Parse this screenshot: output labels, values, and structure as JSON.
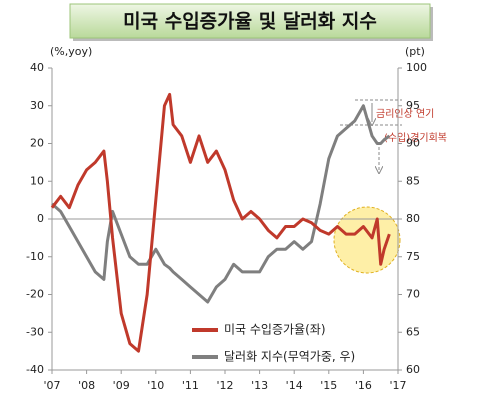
{
  "chart_data": {
    "type": "line",
    "title": "미국 수입증가율 및 달러화 지수",
    "y_axis_label": "(%,yoy)",
    "y2_axis_label": "(pt)",
    "xlim": [
      2007,
      2017
    ],
    "xticks": [
      {
        "value": 2007,
        "label": "'07"
      },
      {
        "value": 2008,
        "label": "'08"
      },
      {
        "value": 2009,
        "label": "'09"
      },
      {
        "value": 2010,
        "label": "'10"
      },
      {
        "value": 2011,
        "label": "'11"
      },
      {
        "value": 2012,
        "label": "'12"
      },
      {
        "value": 2013,
        "label": "'13"
      },
      {
        "value": 2014,
        "label": "'14"
      },
      {
        "value": 2015,
        "label": "'15"
      },
      {
        "value": 2016,
        "label": "'16"
      },
      {
        "value": 2017,
        "label": "'17"
      }
    ],
    "ylim": [
      -40,
      40
    ],
    "yticks": [
      -40,
      -30,
      -20,
      -10,
      0,
      10,
      20,
      30,
      40
    ],
    "y2lim": [
      60,
      100
    ],
    "y2ticks": [
      60,
      65,
      70,
      75,
      80,
      85,
      90,
      95,
      100
    ],
    "grid": false,
    "x": [
      2007.0,
      2007.25,
      2007.5,
      2007.75,
      2008.0,
      2008.25,
      2008.5,
      2008.6,
      2008.75,
      2009.0,
      2009.25,
      2009.5,
      2009.75,
      2010.0,
      2010.25,
      2010.4,
      2010.5,
      2010.75,
      2011.0,
      2011.25,
      2011.5,
      2011.75,
      2012.0,
      2012.25,
      2012.5,
      2012.75,
      2013.0,
      2013.25,
      2013.5,
      2013.75,
      2014.0,
      2014.25,
      2014.5,
      2014.75,
      2015.0,
      2015.25,
      2015.5,
      2015.75,
      2016.0,
      2016.25,
      2016.4,
      2016.5,
      2016.6,
      2016.75
    ],
    "series": [
      {
        "name": "미국 수입증가율(좌)",
        "color": "#c0392b",
        "values": [
          3,
          6,
          3,
          9,
          13,
          15,
          18,
          10,
          -5,
          -25,
          -33,
          -35,
          -20,
          5,
          30,
          33,
          25,
          22,
          15,
          22,
          15,
          18,
          13,
          5,
          0,
          2,
          0,
          -3,
          -5,
          -2,
          -2,
          0,
          -1,
          -3,
          -4,
          -2,
          -4,
          -4,
          -2,
          -5,
          0,
          -12,
          -8,
          -4
        ]
      },
      {
        "name": "달러화 지수(무역가중, 우)",
        "color": "#7f7f7f",
        "axis": "y2",
        "values": [
          82,
          81,
          79,
          77,
          75,
          73,
          72,
          77,
          81,
          78,
          75,
          74,
          74,
          76,
          74,
          73.5,
          73,
          72,
          71,
          70,
          69,
          71,
          72,
          74,
          73,
          73,
          73,
          75,
          76,
          76,
          77,
          76,
          77,
          82,
          88,
          91,
          92,
          93,
          95,
          91,
          90,
          90,
          90.5,
          91
        ]
      }
    ],
    "annotations": [
      {
        "text": "금리인상 연기"
      },
      {
        "text": "(수입)경기회복"
      }
    ]
  }
}
